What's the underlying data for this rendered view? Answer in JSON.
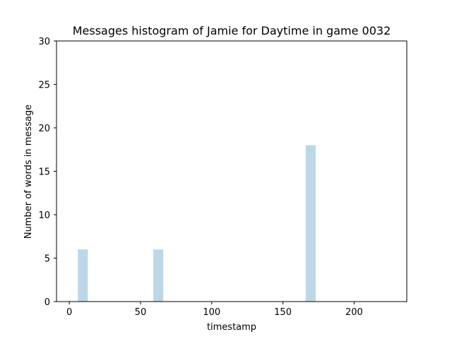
{
  "chart_data": {
    "type": "bar",
    "title": "Messages histogram of Jamie for Daytime in game 0032",
    "xlabel": "timestamp",
    "ylabel": "Number of words in message",
    "xlim": [
      -9,
      237
    ],
    "ylim": [
      0,
      30
    ],
    "xticks": [
      0,
      50,
      100,
      150,
      200
    ],
    "yticks": [
      0,
      5,
      10,
      15,
      20,
      25,
      30
    ],
    "bar_color": "#bcd7e8",
    "bars": [
      {
        "x0": 6,
        "x1": 13,
        "value": 6
      },
      {
        "x0": 59,
        "x1": 66,
        "value": 6
      },
      {
        "x0": 166,
        "x1": 173,
        "value": 18
      }
    ],
    "grid": false,
    "legend": null
  }
}
